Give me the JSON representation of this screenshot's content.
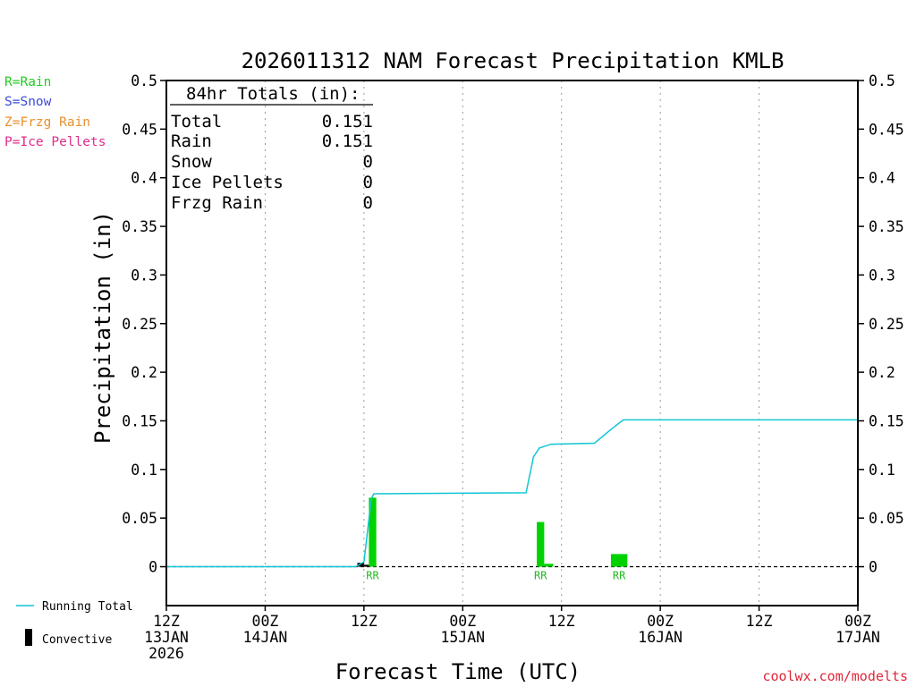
{
  "chart_data": {
    "type": "bar",
    "title": "2026011312 NAM Forecast Precipitation KMLB",
    "ylabel": "Precipitation (in)",
    "xlabel": "Forecast Time (UTC)",
    "ylim": [
      -0.04,
      0.5
    ],
    "y_ticks": [
      0,
      0.05,
      0.1,
      0.15,
      0.2,
      0.25,
      0.3,
      0.35,
      0.4,
      0.45,
      0.5
    ],
    "xlim_hours": [
      0,
      84
    ],
    "x_ticks": [
      {
        "hour": 0,
        "lines": [
          "12Z",
          "13JAN",
          "2026"
        ]
      },
      {
        "hour": 12,
        "lines": [
          "00Z",
          "14JAN"
        ]
      },
      {
        "hour": 24,
        "lines": [
          "12Z"
        ]
      },
      {
        "hour": 36,
        "lines": [
          "00Z",
          "15JAN"
        ]
      },
      {
        "hour": 48,
        "lines": [
          "12Z"
        ]
      },
      {
        "hour": 60,
        "lines": [
          "00Z",
          "16JAN"
        ]
      },
      {
        "hour": 72,
        "lines": [
          "12Z"
        ]
      },
      {
        "hour": 84,
        "lines": [
          "00Z",
          "17JAN"
        ]
      }
    ],
    "grid_hours": [
      12,
      24,
      36,
      48,
      60,
      72
    ],
    "precip_bars": [
      {
        "hour_start": 24.6,
        "hour_end": 25.5,
        "value": 0.071,
        "type": "rain",
        "label": "RR"
      },
      {
        "hour_start": 45.0,
        "hour_end": 45.9,
        "value": 0.046,
        "type": "rain",
        "label": "RR"
      },
      {
        "hour_start": 45.9,
        "hour_end": 47.0,
        "value": 0.003,
        "type": "rain",
        "label": ""
      },
      {
        "hour_start": 54.0,
        "hour_end": 56.0,
        "value": 0.013,
        "type": "rain",
        "label": "RR"
      }
    ],
    "convective_bars": [
      {
        "hour_start": 23.2,
        "hour_end": 24.0,
        "value": 0.004
      },
      {
        "hour_start": 24.0,
        "hour_end": 24.6,
        "value": 0.002
      }
    ],
    "running_total": {
      "hours": [
        0,
        23.0,
        24.0,
        24.9,
        25.2,
        43.7,
        44.6,
        45.3,
        46.7,
        52.0,
        54.0,
        55.5,
        84.0
      ],
      "values": [
        0,
        0,
        0.005,
        0.07,
        0.075,
        0.076,
        0.113,
        0.122,
        0.126,
        0.127,
        0.141,
        0.151,
        0.151
      ]
    },
    "totals": {
      "heading": "84hr Totals (in):",
      "rows": [
        {
          "label": "Total",
          "value": "0.151"
        },
        {
          "label": "Rain",
          "value": "0.151"
        },
        {
          "label": "Snow",
          "value": "0"
        },
        {
          "label": "Ice Pellets",
          "value": "0"
        },
        {
          "label": "Frzg Rain",
          "value": "0"
        }
      ]
    },
    "type_legend": [
      {
        "text": "R=Rain",
        "color": "#22cc22"
      },
      {
        "text": "S=Snow",
        "color": "#3b4bd8"
      },
      {
        "text": "Z=Frzg Rain",
        "color": "#e8902e"
      },
      {
        "text": "P=Ice Pellets",
        "color": "#e02c8a"
      }
    ],
    "line_legend": [
      {
        "text": "Running Total",
        "color": "#11c6d4"
      },
      {
        "text": "Convective",
        "color": "#000000"
      }
    ],
    "colors": {
      "rain": "#00d200",
      "running_total": "#11c6d4",
      "convective": "#000000",
      "rr_label": "#22bb22"
    },
    "credit": {
      "text": "coolwx.com/modelts",
      "color": "#e0263a"
    }
  }
}
